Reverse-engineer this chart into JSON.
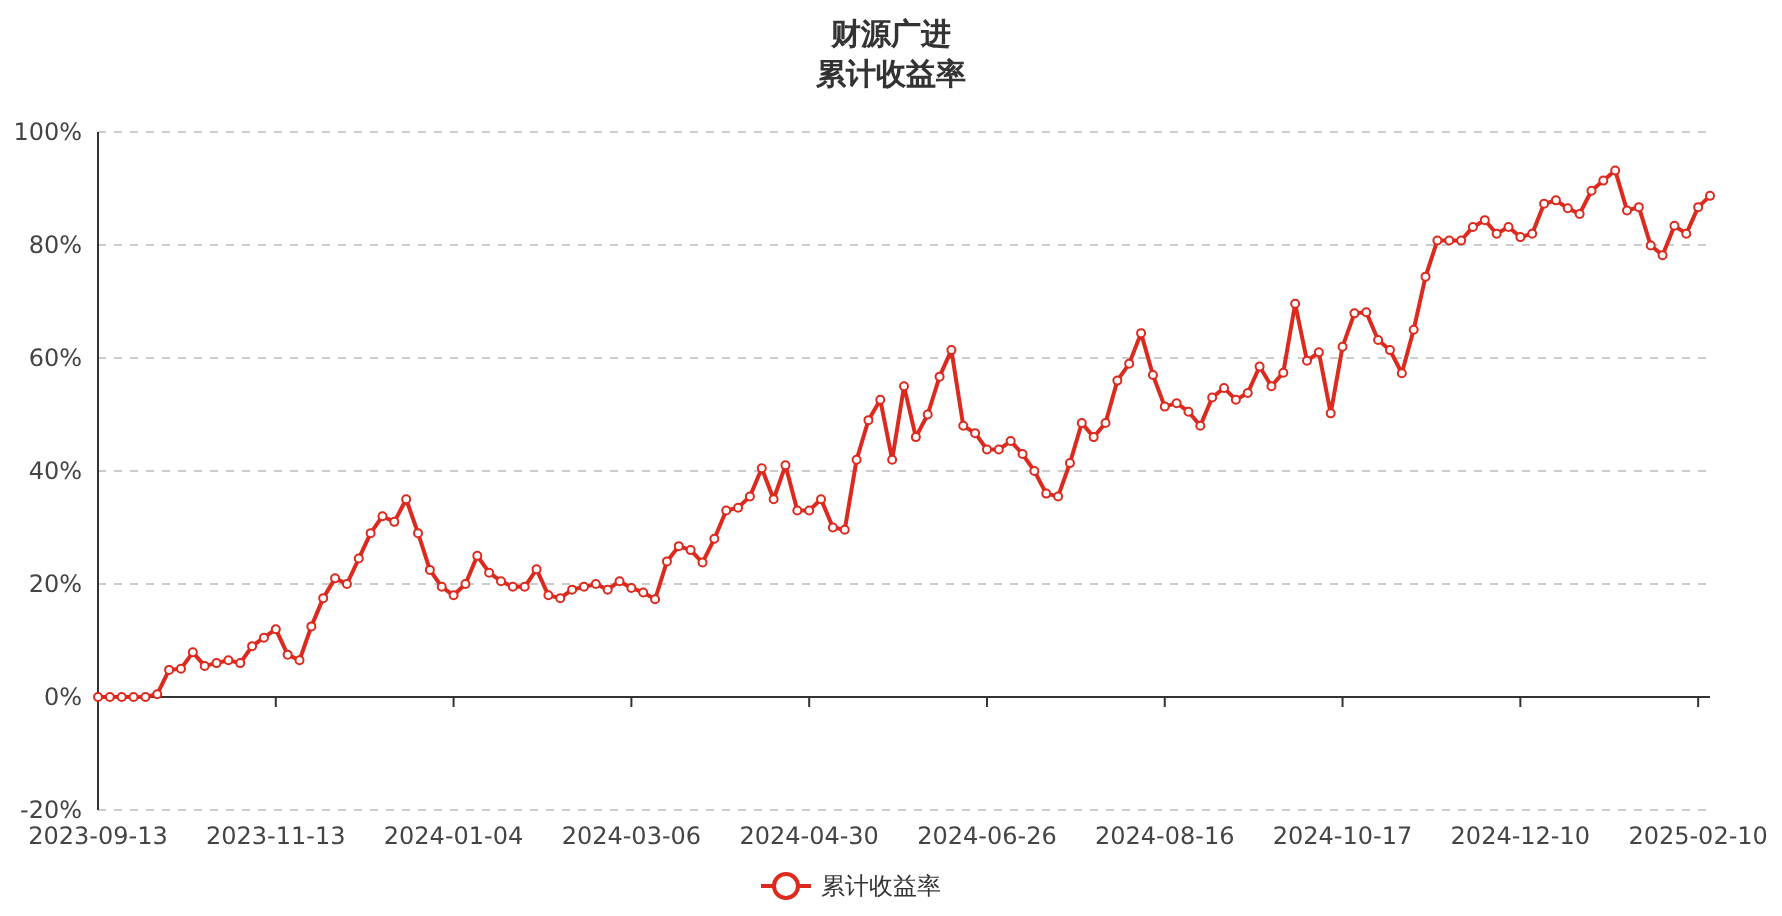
{
  "chart_data": {
    "type": "line",
    "title": "财源广进",
    "subtitle": "累计收益率",
    "categories": [
      "2023-09-13",
      null,
      null,
      null,
      null,
      null,
      null,
      null,
      null,
      null,
      null,
      null,
      null,
      null,
      null,
      "2023-11-13",
      null,
      null,
      null,
      null,
      null,
      null,
      null,
      null,
      null,
      null,
      null,
      null,
      null,
      null,
      "2024-01-04",
      null,
      null,
      null,
      null,
      null,
      null,
      null,
      null,
      null,
      null,
      null,
      null,
      null,
      null,
      "2024-03-06",
      null,
      null,
      null,
      null,
      null,
      null,
      null,
      null,
      null,
      null,
      null,
      null,
      null,
      null,
      "2024-04-30",
      null,
      null,
      null,
      null,
      null,
      null,
      null,
      null,
      null,
      null,
      null,
      null,
      null,
      null,
      "2024-06-26",
      null,
      null,
      null,
      null,
      null,
      null,
      null,
      null,
      null,
      null,
      null,
      null,
      null,
      null,
      "2024-08-16",
      null,
      null,
      null,
      null,
      null,
      null,
      null,
      null,
      null,
      null,
      null,
      null,
      null,
      null,
      "2024-10-17",
      null,
      null,
      null,
      null,
      null,
      null,
      null,
      null,
      null,
      null,
      null,
      null,
      null,
      null,
      "2024-12-10",
      null,
      null,
      null,
      null,
      null,
      null,
      null,
      null,
      null,
      null,
      null,
      null,
      null,
      null,
      "2025-02-10",
      null
    ],
    "series": [
      {
        "name": "累计收益率",
        "color": "#dd2a1e",
        "values": [
          0,
          0,
          0,
          0,
          0,
          0.5,
          4.8,
          5,
          7.9,
          5.5,
          6,
          6.5,
          6,
          9,
          10.5,
          12,
          7.5,
          6.5,
          12.5,
          17.5,
          21,
          20,
          24.5,
          29,
          32,
          31,
          35,
          29,
          22.5,
          19.5,
          18,
          20,
          25,
          22,
          20.5,
          19.5,
          19.5,
          22.6,
          18,
          17.5,
          19,
          19.5,
          20,
          19,
          20.5,
          19.3,
          18.5,
          17.3,
          24,
          26.7,
          26,
          23.8,
          28,
          33,
          33.5,
          35.5,
          40.5,
          35,
          41,
          33,
          33,
          35,
          30,
          29.6,
          42,
          49,
          52.6,
          42,
          55,
          46,
          50,
          56.7,
          61.4,
          48,
          46.7,
          43.8,
          43.8,
          45.3,
          43,
          40,
          36,
          35.5,
          41.4,
          48.5,
          46,
          48.5,
          56,
          59,
          64.4,
          57,
          51.4,
          52,
          50.5,
          48,
          53,
          54.7,
          52.6,
          53.8,
          58.5,
          55,
          57.4,
          69.6,
          59.5,
          61,
          50.2,
          62,
          67.9,
          68.1,
          63.2,
          61.4,
          57.3,
          65,
          74.4,
          80.8,
          80.8,
          80.8,
          83.2,
          84.4,
          82,
          83.2,
          81.4,
          82,
          87.3,
          87.9,
          86.5,
          85.5,
          89.6,
          91.4,
          93.2,
          86.1,
          86.7,
          79.9,
          78.2,
          83.4,
          82,
          86.7,
          88.7
        ]
      }
    ],
    "ylim": [
      -20,
      100
    ],
    "yticks": [
      {
        "value": -20,
        "label": "-20%"
      },
      {
        "value": 0,
        "label": "0%"
      },
      {
        "value": 20,
        "label": "20%"
      },
      {
        "value": 40,
        "label": "40%"
      },
      {
        "value": 60,
        "label": "60%"
      },
      {
        "value": 80,
        "label": "80%"
      },
      {
        "value": 100,
        "label": "100%"
      }
    ],
    "grid": "y",
    "legend": "bottom",
    "marker": "circle",
    "line_style": "solid"
  }
}
